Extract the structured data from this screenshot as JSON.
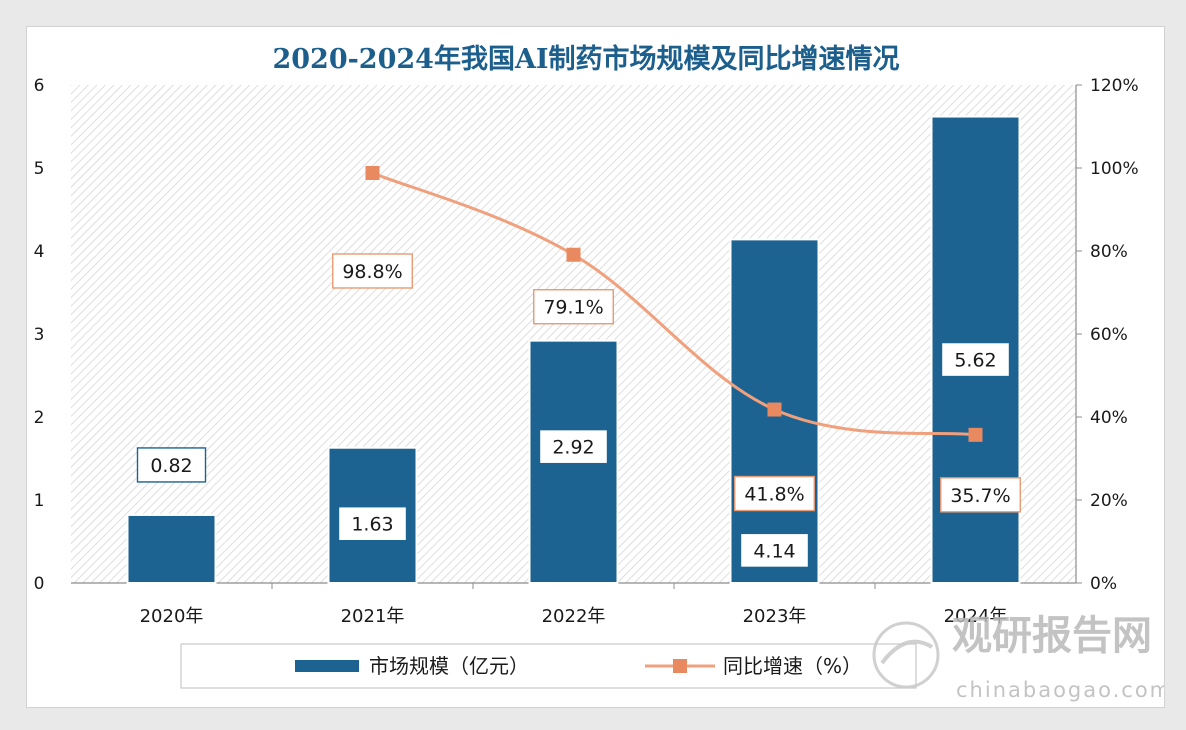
{
  "chart_data": {
    "type": "bar",
    "title": "2020-2024年我国AI制药市场规模及同比增速情况",
    "categories": [
      "2020年",
      "2021年",
      "2022年",
      "2023年",
      "2024年"
    ],
    "series": [
      {
        "name": "市场规模（亿元）",
        "type": "bar",
        "axis": "left",
        "values": [
          0.82,
          1.63,
          2.92,
          4.14,
          5.62
        ],
        "labels": [
          "0.82",
          "1.63",
          "2.92",
          "4.14",
          "5.62"
        ],
        "color": "#1c6392"
      },
      {
        "name": "同比增速（%）",
        "type": "line",
        "axis": "right",
        "values": [
          null,
          98.8,
          79.1,
          41.8,
          35.7
        ],
        "labels": [
          "",
          "98.8%",
          "79.1%",
          "41.8%",
          "35.7%"
        ],
        "color": "#f0a07c"
      }
    ],
    "ylim_left": [
      0,
      6
    ],
    "yticks_left": [
      "0",
      "1",
      "2",
      "3",
      "4",
      "5",
      "6"
    ],
    "ylim_right": [
      0,
      120
    ],
    "yticks_right": [
      "0%",
      "20%",
      "40%",
      "60%",
      "80%",
      "100%",
      "120%"
    ],
    "legend_position": "bottom",
    "grid": false,
    "background": "hatched"
  },
  "watermark": {
    "brand": "观研报告网",
    "domain": "chinabaogao.com"
  }
}
